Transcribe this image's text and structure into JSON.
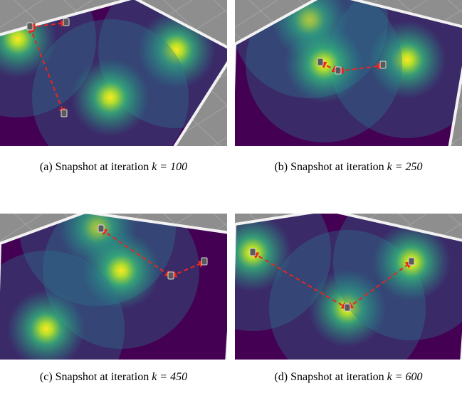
{
  "figure": {
    "subfigures": [
      {
        "label": "(a)",
        "text": "Snapshot at iteration",
        "math": "k = 100"
      },
      {
        "label": "(b)",
        "text": "Snapshot at iteration",
        "math": "k = 250"
      },
      {
        "label": "(c)",
        "text": "Snapshot at iteration",
        "math": "k = 450"
      },
      {
        "label": "(d)",
        "text": "Snapshot at iteration",
        "math": "k = 600"
      }
    ]
  }
}
